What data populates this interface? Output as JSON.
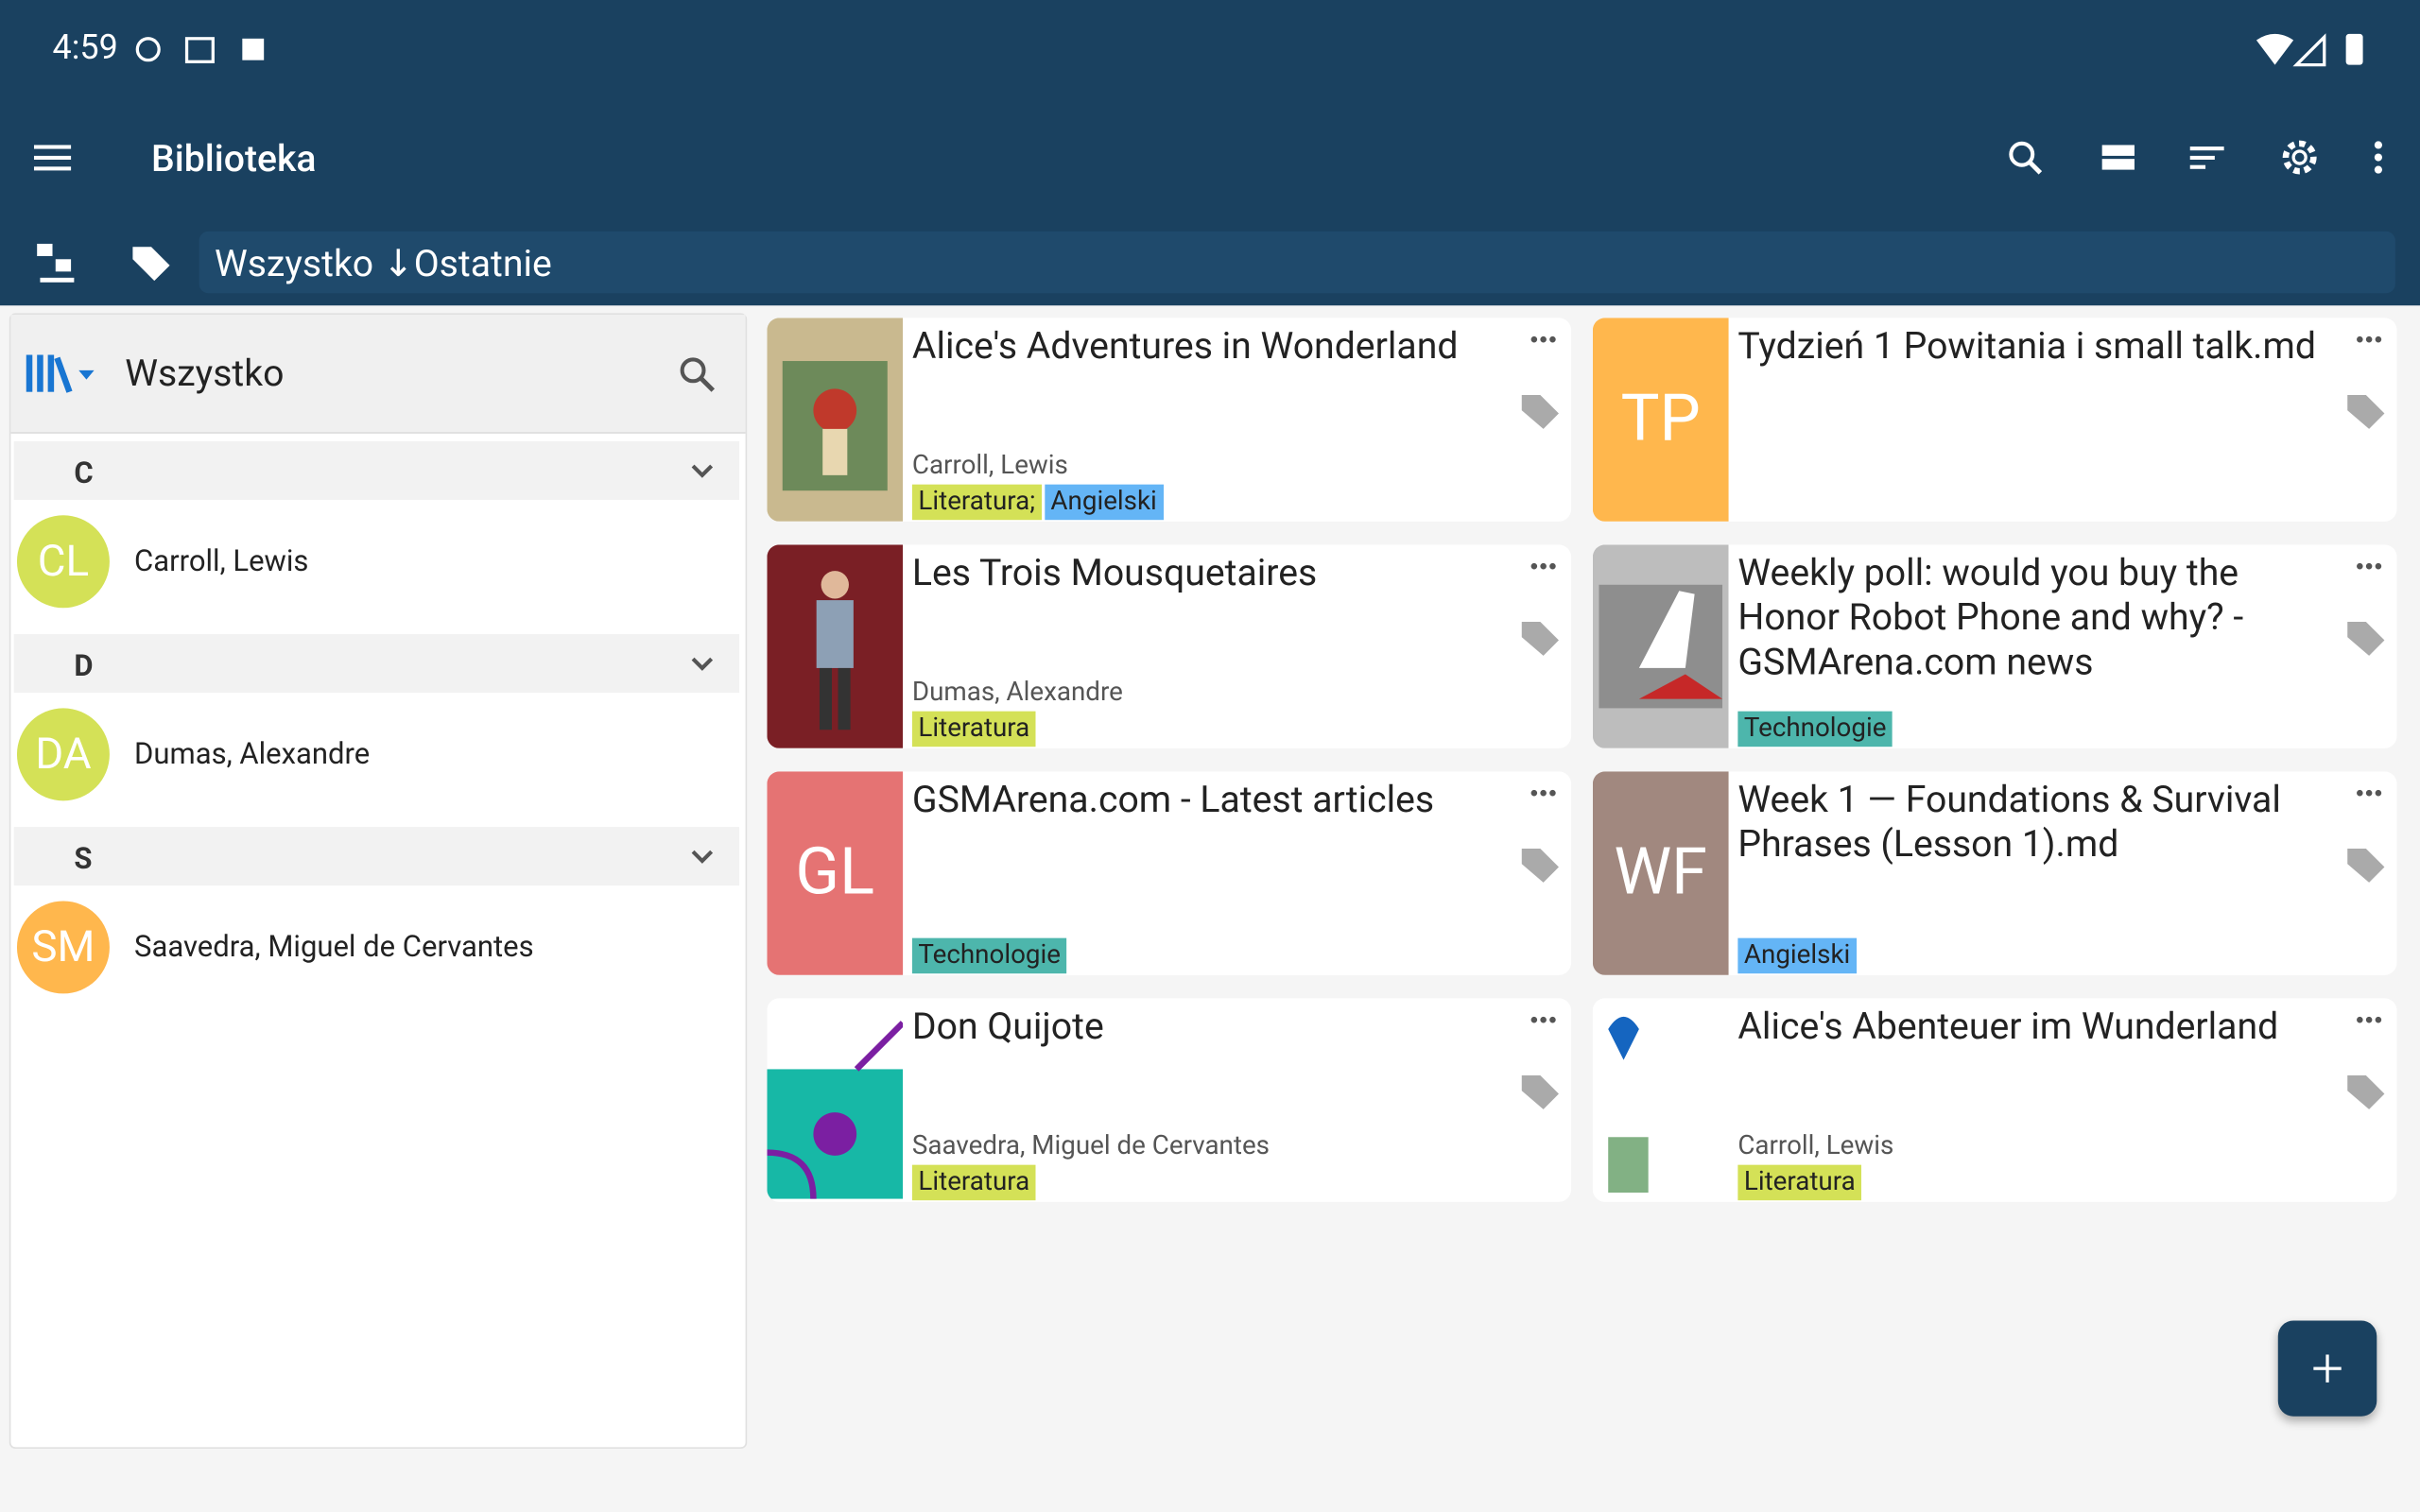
{
  "status_bar": {
    "time": "4:59"
  },
  "toolbar": {
    "title": "Biblioteka"
  },
  "breadcrumb": "Wszystko ↓Ostatnie",
  "sidebar": {
    "selector": "Wszystko",
    "groups": [
      {
        "letter": "C",
        "authors": [
          {
            "initials": "CL",
            "name": "Carroll, Lewis",
            "color": "#d4e157"
          }
        ]
      },
      {
        "letter": "D",
        "authors": [
          {
            "initials": "DA",
            "name": "Dumas, Alexandre",
            "color": "#d4e157"
          }
        ]
      },
      {
        "letter": "S",
        "authors": [
          {
            "initials": "SM",
            "name": "Saavedra, Miguel de Cervantes",
            "color": "#ffb74d"
          }
        ]
      }
    ]
  },
  "books": [
    {
      "title": "Alice's Adventures in Wonderland",
      "author": "Carroll, Lewis",
      "tags": [
        "Literatura;",
        "Angielski"
      ]
    },
    {
      "title": "Tydzień 1 Powitania i small talk.md",
      "cover_initials": "TP",
      "cover_color": "#ffb74d",
      "tags": []
    },
    {
      "title": "Les Trois Mousquetaires",
      "author": "Dumas, Alexandre",
      "tags": [
        "Literatura"
      ]
    },
    {
      "title": "Weekly poll: would you buy the Honor Robot Phone and why? - GSMArena.com news",
      "tags": [
        "Technologie"
      ]
    },
    {
      "title": "GSMArena.com - Latest articles",
      "cover_initials": "GL",
      "cover_color": "#e57373",
      "tags": [
        "Technologie"
      ]
    },
    {
      "title": "Week 1 — Foundations & Survival Phrases (Lesson 1).md",
      "cover_initials": "WF",
      "cover_color": "#a1887f",
      "tags": [
        "Angielski"
      ]
    },
    {
      "title": "Don Quijote",
      "author": "Saavedra, Miguel de Cervantes",
      "tags": [
        "Literatura"
      ]
    },
    {
      "title": "Alice's Abenteuer im Wunderland",
      "author": "Carroll, Lewis",
      "tags": [
        "Literatura"
      ]
    }
  ]
}
